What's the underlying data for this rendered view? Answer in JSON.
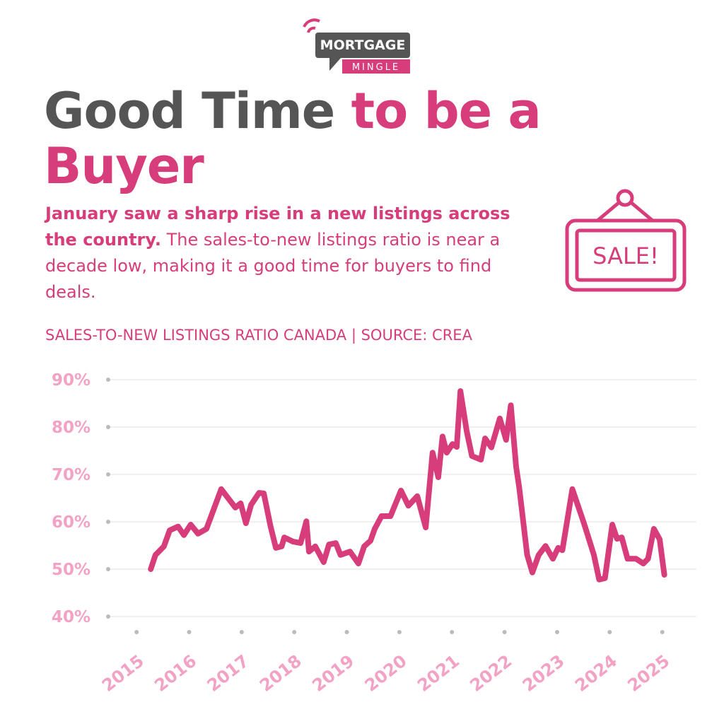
{
  "header": {
    "logo_top": "MORTGAGE",
    "logo_bottom": "MINGLE",
    "title_dark": "Good Time",
    "title_accent": "to be a",
    "title_line2": "Buyer",
    "intro_bold": "January saw a sharp rise in a new listings across the country.",
    "intro_rest": "The sales-to-new listings ratio is near a decade low, making it a good time for buyers to find deals.",
    "sign": "SALE!"
  },
  "chart_data": {
    "type": "line",
    "title": "SALES-TO-NEW LISTINGS RATIO CANADA | SOURCE: CREA",
    "color": "#d63d7a",
    "grid": true,
    "x": [
      2015.27,
      2015.36,
      2015.52,
      2015.63,
      2015.79,
      2015.9,
      2016.03,
      2016.17,
      2016.33,
      2016.61,
      2016.88,
      2016.98,
      2017.08,
      2017.18,
      2017.33,
      2017.42,
      2017.55,
      2017.65,
      2017.76,
      2017.81,
      2017.98,
      2018.12,
      2018.23,
      2018.28,
      2018.4,
      2018.56,
      2018.66,
      2018.79,
      2018.88,
      2019.06,
      2019.22,
      2019.33,
      2019.45,
      2019.53,
      2019.66,
      2019.83,
      2020.03,
      2020.17,
      2020.34,
      2020.5,
      2020.63,
      2020.74,
      2020.82,
      2020.9,
      2021.01,
      2021.09,
      2021.16,
      2021.28,
      2021.38,
      2021.55,
      2021.63,
      2021.75,
      2021.91,
      2022.03,
      2022.12,
      2022.22,
      2022.28,
      2022.43,
      2022.53,
      2022.65,
      2022.78,
      2022.92,
      2023.02,
      2023.1,
      2023.29,
      2023.51,
      2023.7,
      2023.8,
      2023.91,
      2024.05,
      2024.14,
      2024.23,
      2024.34,
      2024.5,
      2024.64,
      2024.73,
      2024.84,
      2024.95,
      2025.04
    ],
    "values": [
      50,
      53,
      54.8,
      58.2,
      59,
      57.2,
      59.4,
      57.5,
      58.5,
      66.9,
      63,
      63.9,
      59.7,
      63.6,
      66.1,
      66,
      59,
      54.5,
      54.8,
      56.7,
      55.8,
      55.5,
      60.1,
      53.7,
      54.8,
      51.5,
      55.2,
      55.5,
      53,
      53.7,
      51.2,
      54.8,
      56,
      58.5,
      61.2,
      61.2,
      66.6,
      63.4,
      65.4,
      58.8,
      74.6,
      69.4,
      78,
      74.6,
      76.4,
      75.8,
      87.6,
      79.1,
      73.9,
      73.1,
      77.6,
      75.7,
      81.8,
      77.3,
      84.6,
      71.6,
      67.2,
      53,
      49.3,
      53,
      54.9,
      52.2,
      54.5,
      54,
      66.9,
      59.7,
      53,
      47.8,
      48.1,
      59.4,
      56.4,
      56.7,
      52.2,
      52.2,
      51.2,
      52.2,
      58.5,
      56.3,
      48.8
    ],
    "xlim": [
      2014.46,
      2025.65
    ],
    "xticks": [
      2015,
      2016,
      2017,
      2018,
      2019,
      2020,
      2021,
      2022,
      2023,
      2024,
      2025
    ],
    "ylim": [
      40,
      90
    ],
    "yticks": [
      {
        "value": 40,
        "label": "40%"
      },
      {
        "value": 50,
        "label": "50%"
      },
      {
        "value": 60,
        "label": "60%"
      },
      {
        "value": 70,
        "label": "70%"
      },
      {
        "value": 80,
        "label": "80%"
      },
      {
        "value": 90,
        "label": "90%"
      }
    ]
  }
}
